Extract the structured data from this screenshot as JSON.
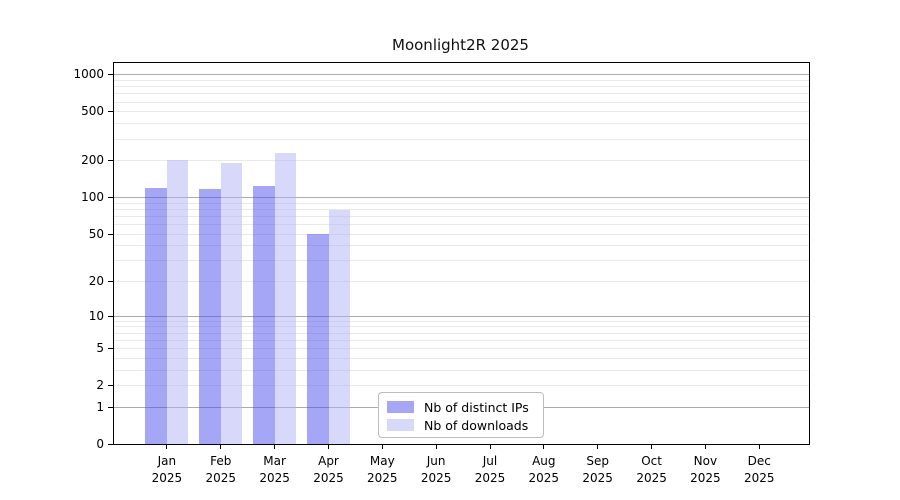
{
  "chart_data": {
    "type": "bar",
    "title": "Moonlight2R 2025",
    "x_months": [
      "Jan",
      "Feb",
      "Mar",
      "Apr",
      "May",
      "Jun",
      "Jul",
      "Aug",
      "Sep",
      "Oct",
      "Nov",
      "Dec"
    ],
    "x_years": [
      "2025",
      "2025",
      "2025",
      "2025",
      "2025",
      "2025",
      "2025",
      "2025",
      "2025",
      "2025",
      "2025",
      "2025"
    ],
    "series": [
      {
        "name": "Nb of distinct IPs",
        "color": "rgba(77,77,240,0.5)",
        "values": [
          118,
          116,
          122,
          50,
          null,
          null,
          null,
          null,
          null,
          null,
          null,
          null
        ]
      },
      {
        "name": "Nb of downloads",
        "color": "rgba(178,178,245,0.5)",
        "values": [
          202,
          190,
          227,
          78,
          null,
          null,
          null,
          null,
          null,
          null,
          null,
          null
        ]
      }
    ],
    "yscale": "log10(1+v)",
    "ytick_labels": [
      0,
      1,
      2,
      5,
      10,
      20,
      50,
      100,
      200,
      500,
      1000
    ],
    "ylim": [
      0,
      1232
    ],
    "grid": {
      "orientation": "horizontal",
      "major_values": [
        1,
        10,
        100,
        1000
      ],
      "minor_rule": "2-9 per decade",
      "major_color": "#ababab",
      "minor_color": "#e9e9e9"
    },
    "legend_position": "bottom-center-inside"
  },
  "legend": {
    "items": [
      {
        "label": "Nb of distinct IPs",
        "color": "rgba(77,77,240,0.5)"
      },
      {
        "label": "Nb of downloads",
        "color": "rgba(178,178,245,0.5)"
      }
    ]
  }
}
